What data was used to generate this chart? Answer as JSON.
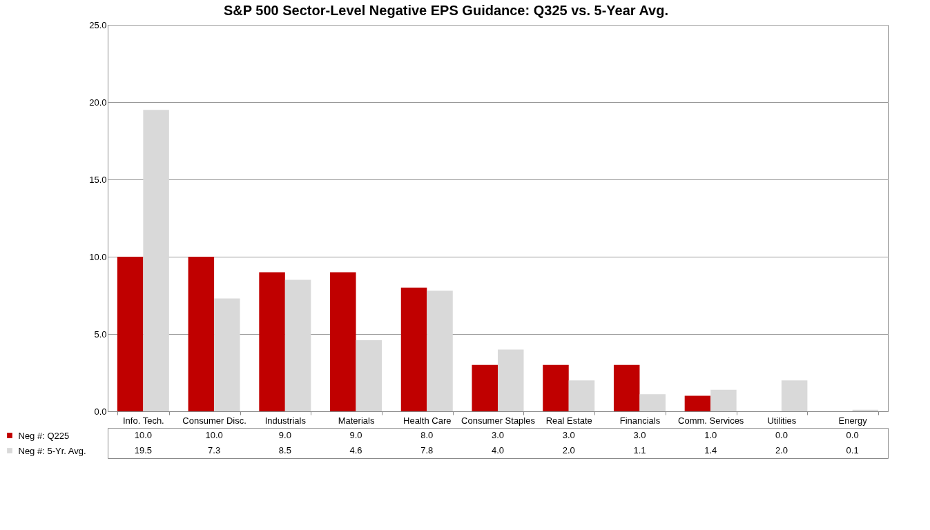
{
  "chart_data": {
    "type": "bar",
    "title": "S&P 500 Sector-Level Negative EPS Guidance: Q325 vs. 5-Year Avg.",
    "categories": [
      "Info. Tech.",
      "Consumer Disc.",
      "Industrials",
      "Materials",
      "Health Care",
      "Consumer Staples",
      "Real Estate",
      "Financials",
      "Comm. Services",
      "Utilities",
      "Energy"
    ],
    "series": [
      {
        "name": "Neg #: Q225",
        "color": "#c00000",
        "values": [
          10.0,
          10.0,
          9.0,
          9.0,
          8.0,
          3.0,
          3.0,
          3.0,
          1.0,
          0.0,
          0.0
        ],
        "value_labels": [
          "10.0",
          "10.0",
          "9.0",
          "9.0",
          "8.0",
          "3.0",
          "3.0",
          "3.0",
          "1.0",
          "0.0",
          "0.0"
        ]
      },
      {
        "name": "Neg #: 5-Yr. Avg.",
        "color": "#d9d9d9",
        "values": [
          19.5,
          7.3,
          8.5,
          4.6,
          7.8,
          4.0,
          2.0,
          1.1,
          1.4,
          2.0,
          0.1
        ],
        "value_labels": [
          "19.5",
          "7.3",
          "8.5",
          "4.6",
          "7.8",
          "4.0",
          "2.0",
          "1.1",
          "1.4",
          "2.0",
          "0.1"
        ]
      }
    ],
    "ylim": [
      0,
      25
    ],
    "yticks": [
      {
        "value": 0,
        "label": "0.0"
      },
      {
        "value": 5,
        "label": "5.0"
      },
      {
        "value": 10,
        "label": "10.0"
      },
      {
        "value": 15,
        "label": "15.0"
      },
      {
        "value": 20,
        "label": "20.0"
      },
      {
        "value": 25,
        "label": "25.0"
      }
    ],
    "grid": "y",
    "legend": "bottom"
  }
}
